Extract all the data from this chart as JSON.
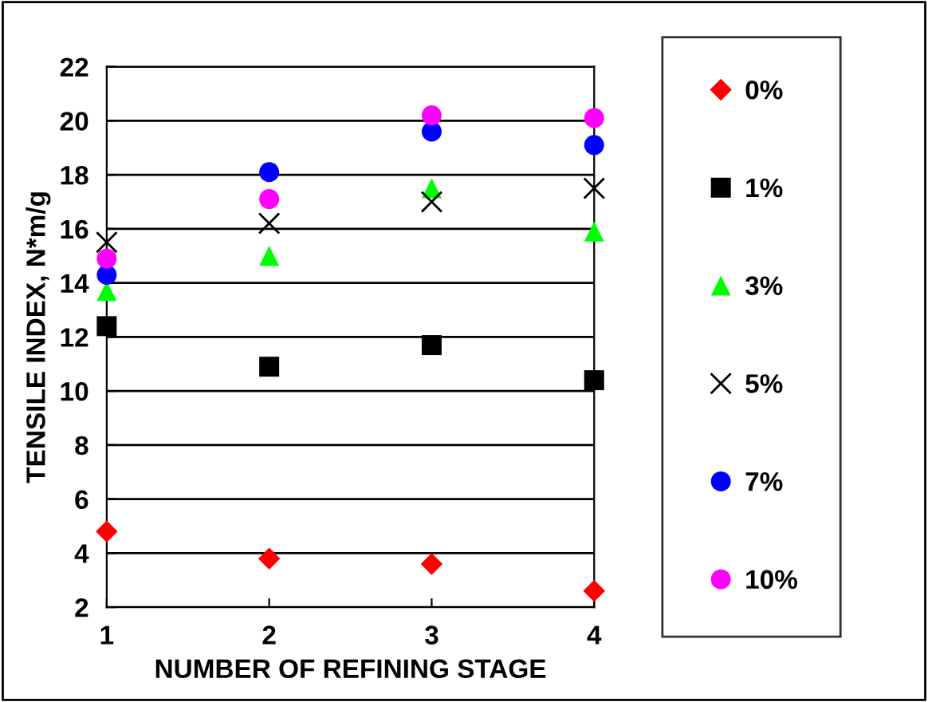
{
  "chart_data": {
    "type": "scatter",
    "xlabel": "NUMBER OF REFINING STAGE",
    "ylabel": "TENSILE INDEX, N*m/g",
    "x": [
      1,
      2,
      3,
      4
    ],
    "xlim": [
      1,
      4
    ],
    "xticks": [
      1,
      2,
      3,
      4
    ],
    "ylim": [
      2,
      22
    ],
    "yticks": [
      2,
      4,
      6,
      8,
      10,
      12,
      14,
      16,
      18,
      20,
      22
    ],
    "grid": "y",
    "legend": "right",
    "series": [
      {
        "name": "0%",
        "color": "#ff0000",
        "marker": "diamond",
        "values": [
          4.8,
          3.8,
          3.6,
          2.6
        ]
      },
      {
        "name": "1%",
        "color": "#000000",
        "marker": "square",
        "values": [
          12.4,
          10.9,
          11.7,
          10.4
        ]
      },
      {
        "name": "3%",
        "color": "#00ff00",
        "marker": "triangle",
        "values": [
          13.7,
          15.0,
          17.5,
          15.9
        ]
      },
      {
        "name": "5%",
        "color": "#000000",
        "marker": "cross",
        "values": [
          15.5,
          16.2,
          17.0,
          17.5
        ]
      },
      {
        "name": "7%",
        "color": "#0000ff",
        "marker": "circle",
        "values": [
          14.3,
          18.1,
          19.6,
          19.1
        ]
      },
      {
        "name": "10%",
        "color": "#ff00ff",
        "marker": "circle",
        "values": [
          14.9,
          17.1,
          20.2,
          20.1
        ]
      }
    ]
  }
}
